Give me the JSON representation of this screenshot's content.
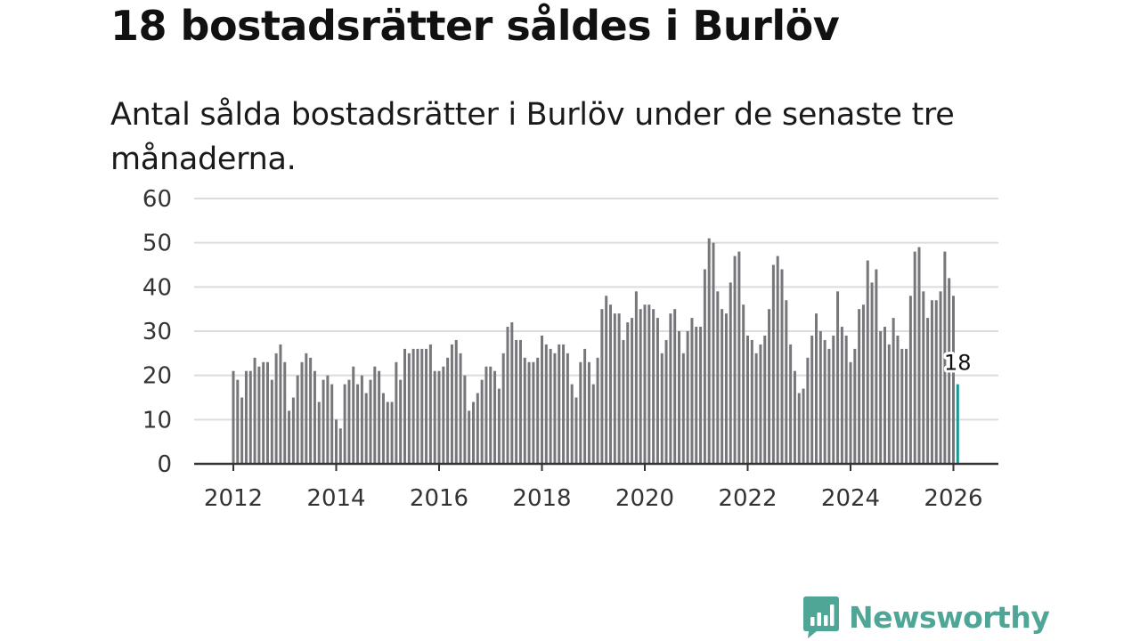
{
  "header": {
    "title": "18 bostadsrätter såldes i Burlöv",
    "subtitle": "Antal sålda bostadsrätter i Burlöv under de senaste tre månaderna."
  },
  "branding": {
    "logo_text": "Newsworthy",
    "logo_color": "#4fa596"
  },
  "colors": {
    "bar": "#77767b",
    "highlight": "#1a9a92",
    "grid": "#dcdcdc",
    "axis": "#333333"
  },
  "chart_data": {
    "type": "bar",
    "title": "18 bostadsrätter såldes i Burlöv",
    "subtitle": "Antal sålda bostadsrätter i Burlöv under de senaste tre månaderna.",
    "xlabel": "",
    "ylabel": "",
    "ylim": [
      0,
      60
    ],
    "yticks": [
      0,
      10,
      20,
      30,
      40,
      50,
      60
    ],
    "ytick_labels": [
      "0",
      "10",
      "20",
      "30",
      "40",
      "50",
      "60"
    ],
    "xticks": [
      2012,
      2014,
      2016,
      2018,
      2020,
      2022,
      2024,
      2026
    ],
    "xtick_labels": [
      "2012",
      "2014",
      "2016",
      "2018",
      "2020",
      "2022",
      "2024",
      "2026"
    ],
    "start": "2012-01",
    "frequency": "monthly",
    "grid": true,
    "highlight": {
      "index": 169,
      "label": "18"
    },
    "values": [
      21,
      19,
      15,
      21,
      21,
      24,
      22,
      23,
      23,
      19,
      25,
      27,
      23,
      12,
      15,
      20,
      23,
      25,
      24,
      21,
      14,
      19,
      20,
      18,
      10,
      8,
      18,
      19,
      22,
      18,
      20,
      16,
      19,
      22,
      21,
      16,
      14,
      14,
      23,
      19,
      26,
      25,
      26,
      26,
      26,
      26,
      27,
      21,
      21,
      22,
      24,
      27,
      28,
      25,
      20,
      12,
      14,
      16,
      19,
      22,
      22,
      21,
      17,
      25,
      31,
      32,
      28,
      28,
      24,
      23,
      23,
      24,
      29,
      27,
      26,
      25,
      27,
      27,
      25,
      18,
      15,
      23,
      26,
      23,
      18,
      24,
      35,
      38,
      36,
      34,
      34,
      28,
      32,
      33,
      39,
      35,
      36,
      36,
      35,
      33,
      25,
      28,
      34,
      35,
      30,
      25,
      30,
      33,
      31,
      31,
      44,
      51,
      50,
      39,
      35,
      34,
      41,
      47,
      48,
      36,
      29,
      28,
      25,
      27,
      29,
      35,
      45,
      47,
      44,
      37,
      27,
      21,
      16,
      17,
      24,
      29,
      34,
      30,
      28,
      26,
      29,
      39,
      31,
      29,
      23,
      26,
      35,
      36,
      46,
      41,
      44,
      30,
      31,
      27,
      33,
      29,
      26,
      26,
      38,
      48,
      49,
      39,
      33,
      37,
      37,
      39,
      48,
      42,
      38,
      18
    ]
  }
}
